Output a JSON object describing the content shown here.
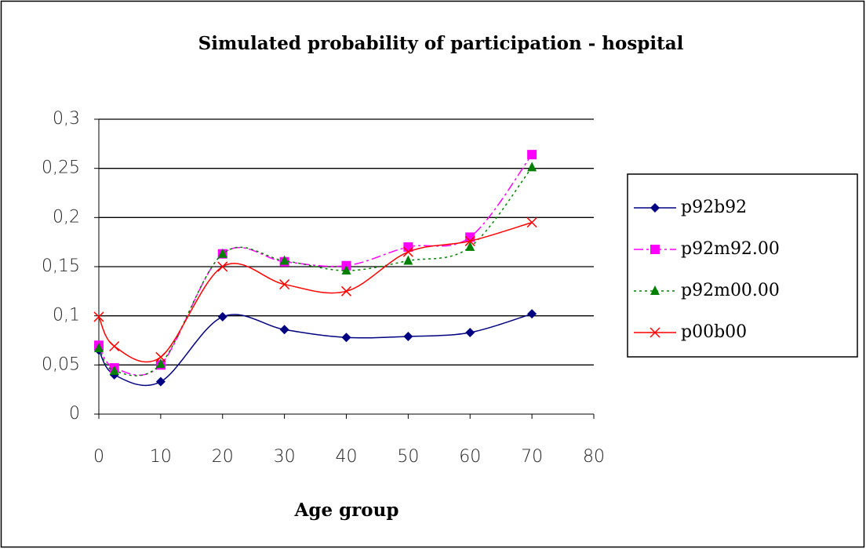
{
  "chart_data": {
    "type": "line",
    "title": "Simulated probability of participation - hospital",
    "xlabel": "Age group",
    "x": [
      0,
      2.5,
      10,
      20,
      30,
      40,
      50,
      60,
      70
    ],
    "xlim": [
      0,
      80
    ],
    "xticks": [
      0,
      10,
      20,
      30,
      40,
      50,
      60,
      70,
      80
    ],
    "ylim": [
      0,
      0.3
    ],
    "yticks": [
      0,
      {
        "value": 0.05,
        "label": "0,05"
      },
      {
        "value": 0.1,
        "label": "0,1"
      },
      {
        "value": 0.15,
        "label": "0,15"
      },
      {
        "value": 0.2,
        "label": "0,2"
      },
      {
        "value": 0.25,
        "label": "0,25"
      },
      {
        "value": 0.3,
        "label": "0,3"
      }
    ],
    "grid": true,
    "smooth": true,
    "legend": "right",
    "series": [
      {
        "name": "p92b92",
        "color": "#000080",
        "marker": "diamond",
        "dash": "solid",
        "values": [
          0.065,
          0.04,
          0.033,
          0.099,
          0.086,
          0.078,
          0.079,
          0.083,
          0.102
        ]
      },
      {
        "name": "p92m92.00",
        "color": "#ff00ff",
        "marker": "square",
        "dash": "dashdot",
        "values": [
          0.07,
          0.047,
          0.05,
          0.163,
          0.155,
          0.151,
          0.17,
          0.18,
          0.264
        ]
      },
      {
        "name": "p92m00.00",
        "color": "#008000",
        "marker": "triangle",
        "dash": "dotted",
        "values": [
          0.067,
          0.044,
          0.051,
          0.163,
          0.156,
          0.146,
          0.156,
          0.17,
          0.251
        ]
      },
      {
        "name": "p00b00",
        "color": "#ff0000",
        "marker": "x",
        "dash": "solid",
        "values": [
          0.099,
          0.069,
          0.058,
          0.15,
          0.132,
          0.125,
          0.165,
          0.176,
          0.195
        ]
      }
    ]
  }
}
